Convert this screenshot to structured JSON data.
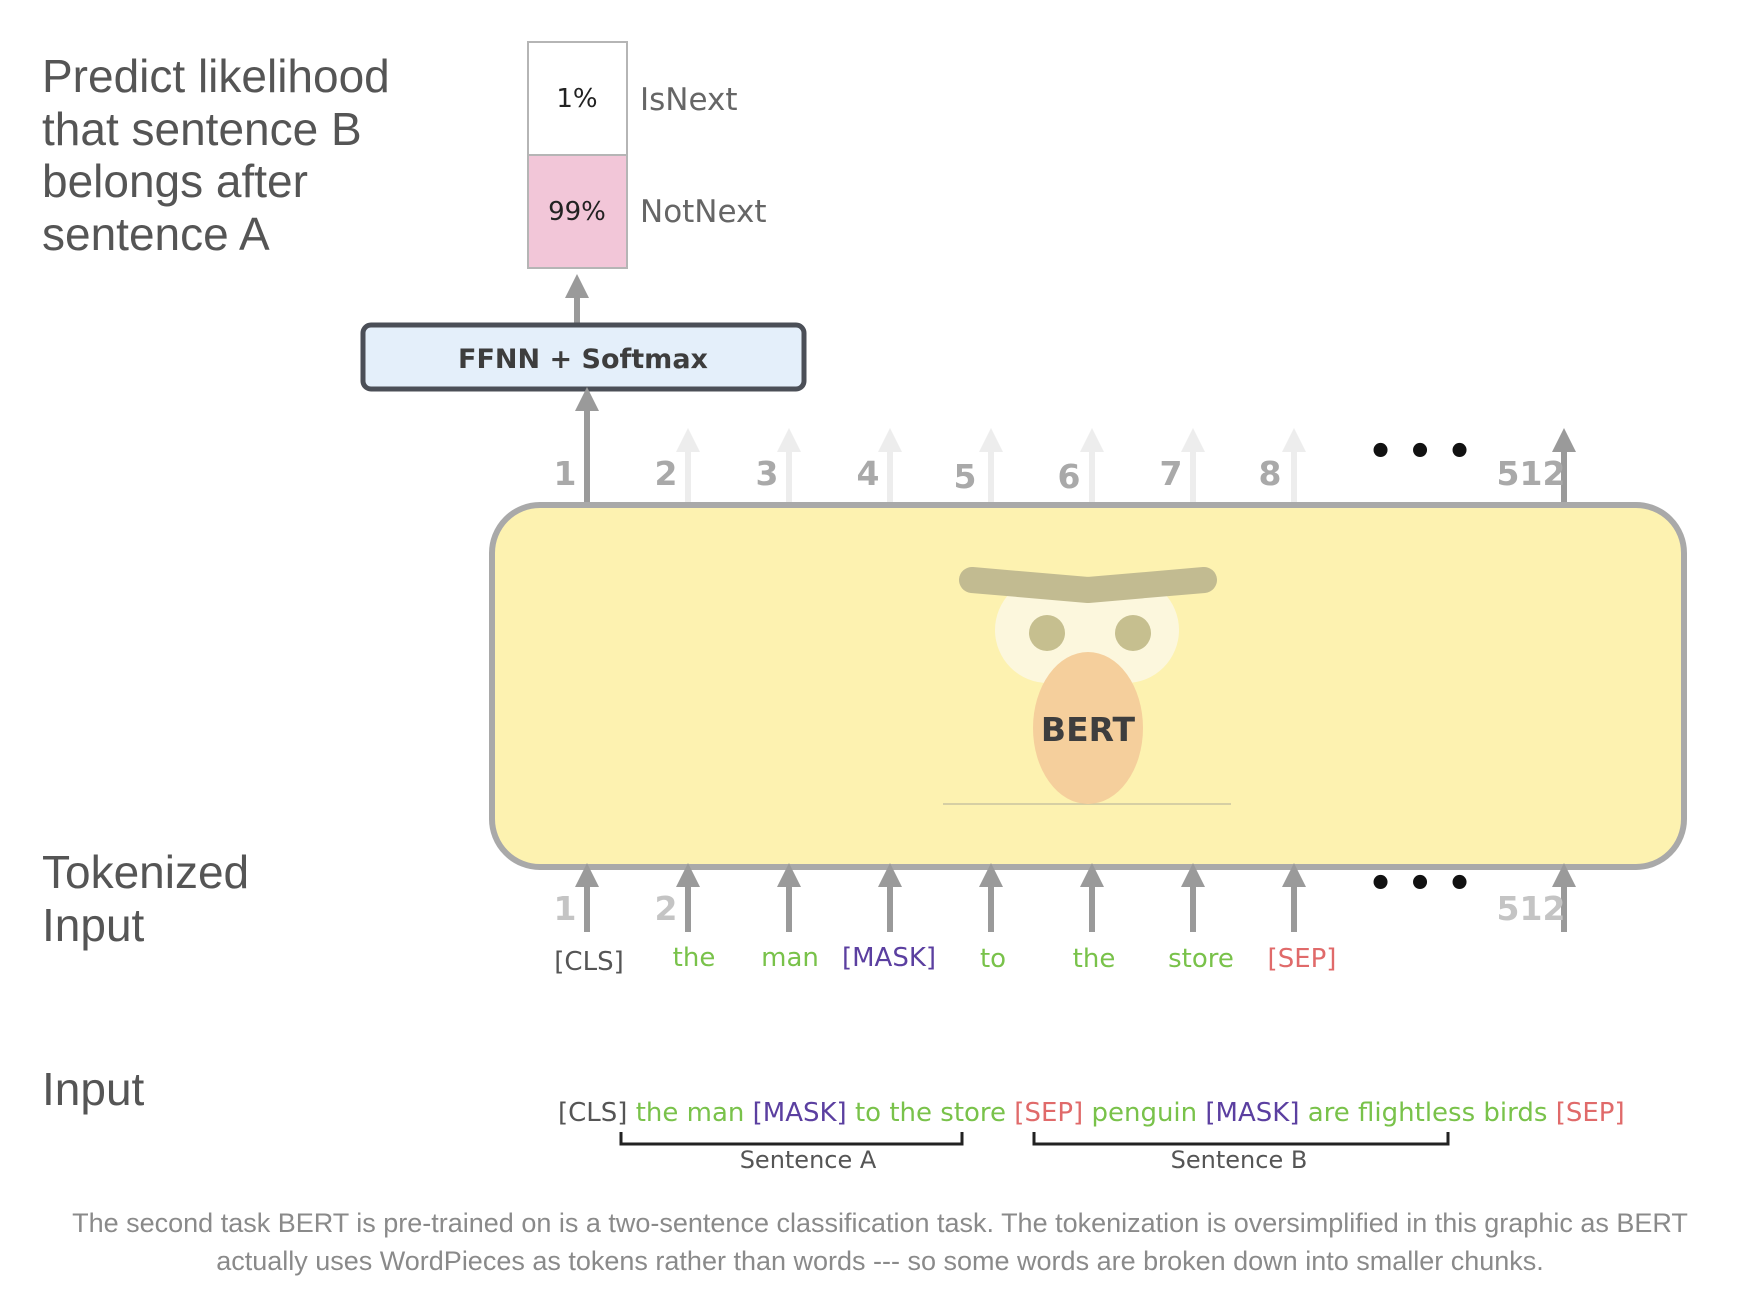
{
  "labels": {
    "predict": [
      "Predict likelihood",
      "that sentence B",
      "belongs after",
      "sentence A"
    ],
    "tokenized": [
      "Tokenized",
      "Input"
    ],
    "input": "Input"
  },
  "classifier": {
    "title": "FFNN + Softmax",
    "outputs": [
      {
        "label": "IsNext",
        "probability": "1%",
        "value": 0.01,
        "color": "#ffffff"
      },
      {
        "label": "NotNext",
        "probability": "99%",
        "value": 0.99,
        "color": "#f2c6d8"
      }
    ]
  },
  "model": {
    "name": "BERT",
    "body_color": "#fdf2b0",
    "border_color": "#a9a9a9"
  },
  "positions": {
    "top": [
      "1",
      "2",
      "3",
      "4",
      "5",
      "6",
      "7",
      "8"
    ],
    "bottom": [
      "1",
      "2"
    ],
    "ellipsis": "• • •",
    "last": "512"
  },
  "tokens": [
    {
      "text": "[CLS]",
      "color": "#555555"
    },
    {
      "text": "the",
      "color": "#79c24a"
    },
    {
      "text": "man",
      "color": "#79c24a"
    },
    {
      "text": "[MASK]",
      "color": "#5b3fa0"
    },
    {
      "text": "to",
      "color": "#79c24a"
    },
    {
      "text": "the",
      "color": "#79c24a"
    },
    {
      "text": "store",
      "color": "#79c24a"
    },
    {
      "text": "[SEP]",
      "color": "#e06a6a"
    }
  ],
  "input_sequence": [
    {
      "text": "[CLS]",
      "color": "#555555"
    },
    {
      "text": "the man",
      "color": "#79c24a"
    },
    {
      "text": "[MASK]",
      "color": "#5b3fa0"
    },
    {
      "text": "to the store",
      "color": "#79c24a"
    },
    {
      "text": "[SEP]",
      "color": "#e06a6a"
    },
    {
      "text": "penguin",
      "color": "#79c24a"
    },
    {
      "text": "[MASK]",
      "color": "#5b3fa0"
    },
    {
      "text": "are flightless birds",
      "color": "#79c24a"
    },
    {
      "text": "[SEP]",
      "color": "#e06a6a"
    }
  ],
  "segments": [
    "Sentence A",
    "Sentence B"
  ],
  "caption": [
    "The second task BERT is pre-trained on is a two-sentence classification task. The tokenization is oversimplified in this graphic as BERT",
    "actually uses WordPieces as tokens rather than words --- so some words are broken down into smaller chunks."
  ]
}
